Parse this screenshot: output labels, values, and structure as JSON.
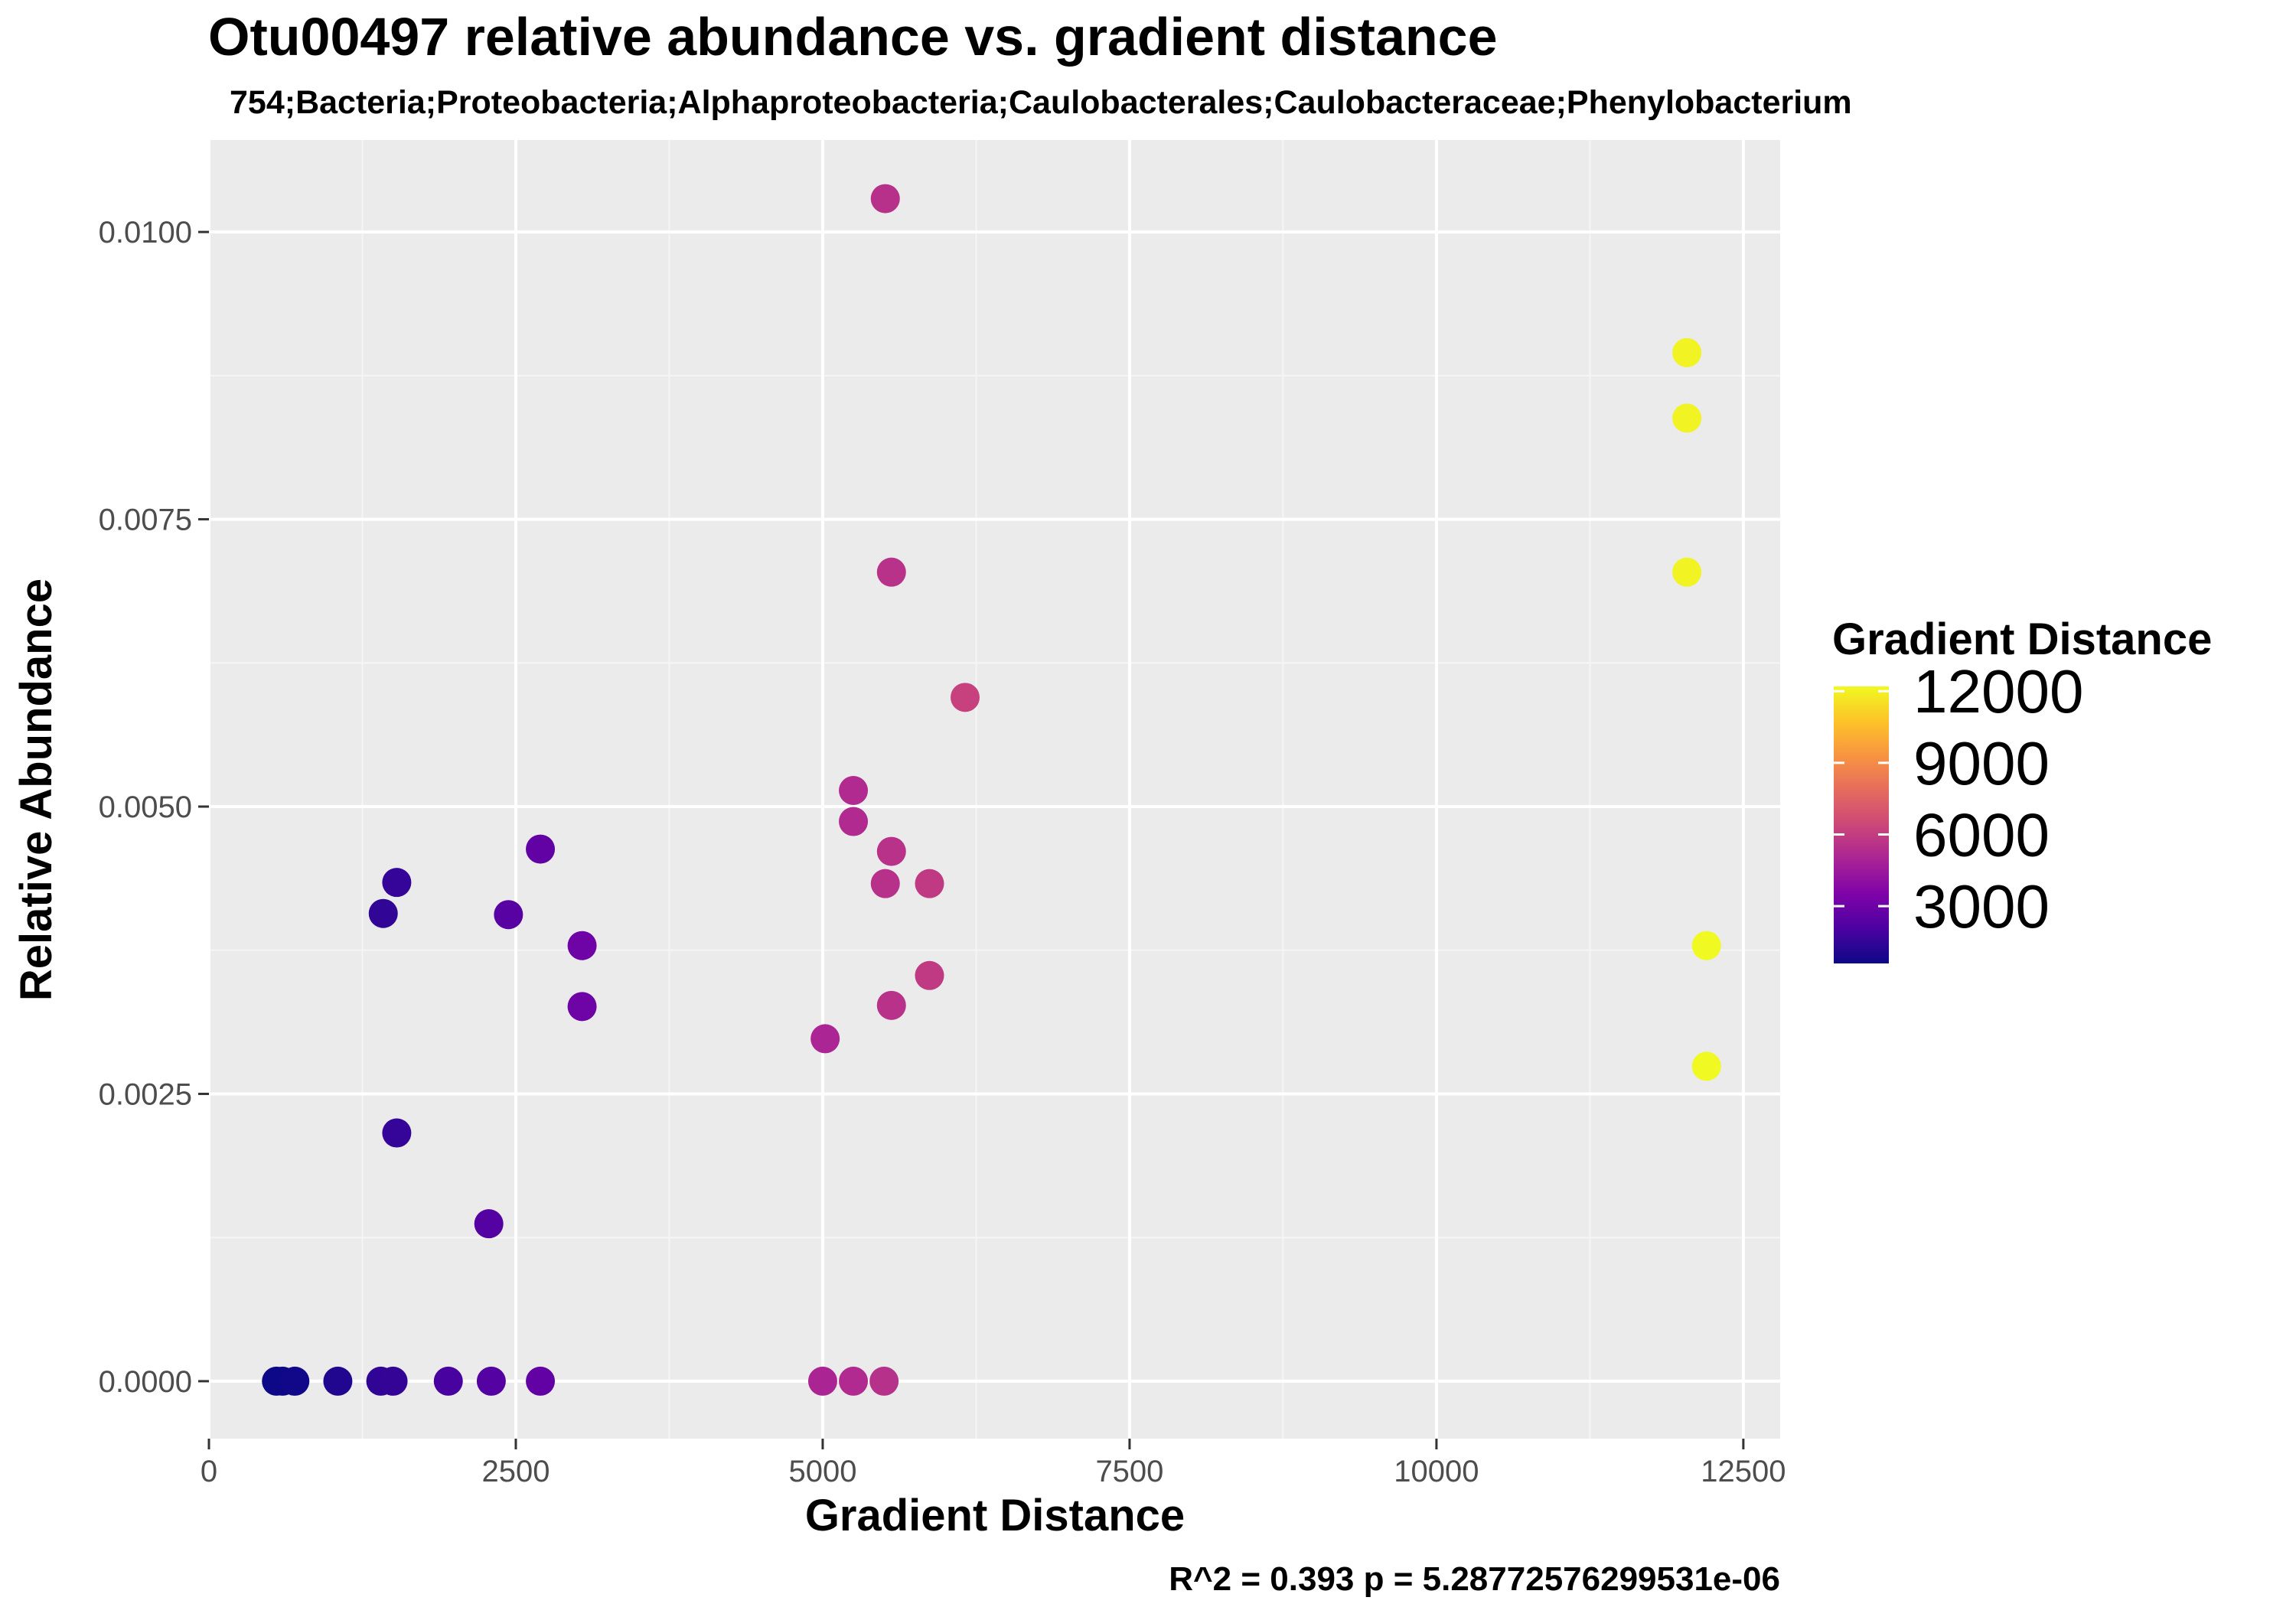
{
  "chart_data": {
    "type": "scatter",
    "title": "Otu00497 relative abundance vs. gradient distance",
    "subtitle": "754;Bacteria;Proteobacteria;Alphaproteobacteria;Caulobacterales;Caulobacteraceae;Phenylobacterium",
    "xlabel": "Gradient Distance",
    "ylabel": "Relative Abundance",
    "caption": "R^2 =  0.393 p = 5.28772576299531e-06",
    "xlim": [
      0,
      12800
    ],
    "ylim": [
      -0.0005,
      0.0108
    ],
    "x_ticks": [
      0,
      2500,
      5000,
      7500,
      10000,
      12500
    ],
    "x_tick_labels": [
      "0",
      "2500",
      "5000",
      "7500",
      "10000",
      "12500"
    ],
    "y_ticks": [
      0,
      0.0025,
      0.005,
      0.0075,
      0.01
    ],
    "y_tick_labels": [
      "0.0000",
      "0.0025",
      "0.0050",
      "0.0075",
      "0.0100"
    ],
    "grid": true,
    "legend": {
      "title": "Gradient Distance",
      "placement": "right",
      "type": "colorbar",
      "palette": "plasma",
      "range": [
        600,
        12200
      ],
      "ticks": [
        3000,
        6000,
        9000,
        12000
      ],
      "tick_labels": [
        "3000",
        "6000",
        "9000",
        "12000"
      ]
    },
    "colors": {
      "panel_background": "#ebebeb",
      "grid_major": "#ffffff",
      "grid_minor": "#f5f5f5",
      "axis_text": "#4d4d4d",
      "tick_mark": "#333333"
    },
    "points": [
      {
        "x": 550,
        "y": 0.0
      },
      {
        "x": 600,
        "y": 0.0
      },
      {
        "x": 700,
        "y": 0.0
      },
      {
        "x": 1050,
        "y": 0.0
      },
      {
        "x": 1400,
        "y": 0.0
      },
      {
        "x": 1500,
        "y": 0.0
      },
      {
        "x": 1950,
        "y": 0.0
      },
      {
        "x": 2300,
        "y": 0.0
      },
      {
        "x": 2700,
        "y": 0.0
      },
      {
        "x": 5000,
        "y": 0.0
      },
      {
        "x": 5250,
        "y": 0.0
      },
      {
        "x": 5500,
        "y": 0.0
      },
      {
        "x": 1420,
        "y": 0.00407
      },
      {
        "x": 1530,
        "y": 0.00434
      },
      {
        "x": 1530,
        "y": 0.00216
      },
      {
        "x": 2280,
        "y": 0.00137
      },
      {
        "x": 2440,
        "y": 0.00406
      },
      {
        "x": 2700,
        "y": 0.00463
      },
      {
        "x": 3040,
        "y": 0.00379
      },
      {
        "x": 3040,
        "y": 0.00326
      },
      {
        "x": 5020,
        "y": 0.00298
      },
      {
        "x": 5250,
        "y": 0.00514
      },
      {
        "x": 5250,
        "y": 0.00487
      },
      {
        "x": 5510,
        "y": 0.01029
      },
      {
        "x": 5510,
        "y": 0.00433
      },
      {
        "x": 5560,
        "y": 0.00704
      },
      {
        "x": 5560,
        "y": 0.00461
      },
      {
        "x": 5560,
        "y": 0.00327
      },
      {
        "x": 5870,
        "y": 0.00433
      },
      {
        "x": 5870,
        "y": 0.00353
      },
      {
        "x": 6160,
        "y": 0.00595
      },
      {
        "x": 12040,
        "y": 0.00895
      },
      {
        "x": 12040,
        "y": 0.00838
      },
      {
        "x": 12040,
        "y": 0.00704
      },
      {
        "x": 12200,
        "y": 0.00379
      },
      {
        "x": 12200,
        "y": 0.00274
      }
    ]
  }
}
